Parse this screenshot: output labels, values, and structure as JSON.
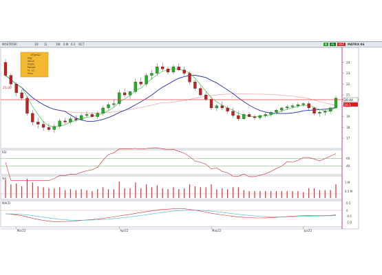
{
  "toolbar": {
    "symbol": "MOSTRTER",
    "range": "1D",
    "interval": "1L",
    "freq": "1W",
    "style": "0.M",
    "src": "0.2",
    "status": "OCT",
    "tag_a": "N",
    "tag_b": "AL",
    "tag_c": "OST",
    "right_label": "MATRIX K6",
    "colors": {
      "tag_a": "#1aa11a",
      "tag_b": "#1a7a1a",
      "tag_c": "#d42020"
    }
  },
  "tooltip": {
    "lines": [
      "17Jun22",
      "Avg:",
      "Value:",
      "Chg%:",
      "Range:",
      "Hi, Lo:",
      "Prev:"
    ]
  },
  "price_badges": {
    "upper": "20.44",
    "lower": "20.1"
  },
  "left_price_label": "21.00",
  "chart_data": {
    "type": "candlestick",
    "panels": [
      {
        "name": "price",
        "ylim": [
          16.5,
          25
        ],
        "yticks": [
          17,
          18,
          19,
          20,
          21,
          22,
          23,
          24
        ],
        "candles": [
          [
            24.0,
            24.3,
            22.6,
            22.8
          ],
          [
            22.8,
            23.0,
            21.8,
            22.0
          ],
          [
            22.0,
            22.2,
            20.9,
            21.2
          ],
          [
            21.2,
            21.5,
            20.5,
            20.7
          ],
          [
            20.7,
            20.9,
            19.1,
            19.3
          ],
          [
            19.3,
            19.6,
            18.2,
            18.5
          ],
          [
            18.5,
            18.9,
            17.9,
            18.3
          ],
          [
            18.3,
            18.6,
            17.7,
            18.0
          ],
          [
            18.0,
            18.4,
            17.6,
            17.8
          ],
          [
            17.8,
            18.3,
            17.5,
            18.1
          ],
          [
            18.1,
            18.8,
            17.9,
            18.6
          ],
          [
            18.6,
            18.9,
            18.3,
            18.5
          ],
          [
            18.5,
            19.0,
            18.3,
            18.8
          ],
          [
            18.8,
            19.1,
            18.5,
            18.7
          ],
          [
            18.7,
            19.3,
            18.6,
            19.1
          ],
          [
            19.1,
            19.5,
            18.9,
            19.2
          ],
          [
            19.2,
            19.4,
            18.9,
            19.0
          ],
          [
            19.0,
            19.5,
            18.8,
            19.3
          ],
          [
            19.3,
            20.0,
            19.1,
            19.8
          ],
          [
            19.8,
            20.3,
            19.6,
            20.1
          ],
          [
            20.1,
            20.6,
            19.9,
            20.2
          ],
          [
            20.2,
            21.5,
            20.0,
            21.2
          ],
          [
            21.2,
            21.6,
            20.8,
            21.0
          ],
          [
            21.0,
            21.4,
            20.6,
            21.3
          ],
          [
            21.3,
            22.5,
            21.1,
            22.2
          ],
          [
            22.2,
            22.6,
            21.8,
            22.0
          ],
          [
            22.0,
            23.0,
            21.8,
            22.8
          ],
          [
            22.8,
            23.3,
            22.4,
            23.0
          ],
          [
            23.0,
            23.9,
            22.8,
            23.6
          ],
          [
            23.6,
            24.0,
            23.2,
            23.4
          ],
          [
            23.4,
            23.6,
            22.9,
            23.1
          ],
          [
            23.1,
            23.8,
            22.9,
            23.6
          ],
          [
            23.6,
            23.9,
            23.2,
            23.3
          ],
          [
            23.3,
            23.6,
            22.8,
            23.0
          ],
          [
            23.0,
            23.2,
            22.0,
            22.2
          ],
          [
            22.2,
            22.4,
            21.4,
            21.6
          ],
          [
            21.6,
            21.8,
            20.9,
            21.0
          ],
          [
            21.0,
            21.3,
            20.4,
            20.6
          ],
          [
            20.6,
            20.8,
            19.6,
            19.8
          ],
          [
            19.8,
            20.2,
            19.5,
            20.0
          ],
          [
            20.0,
            20.4,
            19.6,
            19.8
          ],
          [
            19.8,
            20.0,
            19.3,
            19.5
          ],
          [
            19.5,
            19.8,
            18.9,
            19.1
          ],
          [
            19.1,
            19.5,
            18.6,
            18.8
          ],
          [
            18.8,
            19.3,
            18.7,
            19.2
          ],
          [
            19.2,
            19.4,
            18.9,
            19.0
          ],
          [
            19.0,
            19.2,
            18.7,
            18.9
          ],
          [
            18.9,
            19.2,
            18.7,
            19.1
          ],
          [
            19.1,
            19.4,
            18.9,
            19.2
          ],
          [
            19.2,
            19.5,
            19.0,
            19.4
          ],
          [
            19.4,
            19.7,
            19.2,
            19.6
          ],
          [
            19.6,
            19.9,
            19.4,
            19.8
          ],
          [
            19.8,
            20.1,
            19.6,
            19.9
          ],
          [
            19.9,
            20.2,
            19.7,
            20.0
          ],
          [
            20.0,
            20.3,
            19.8,
            20.1
          ],
          [
            20.1,
            20.3,
            19.9,
            20.2
          ],
          [
            20.2,
            20.4,
            19.6,
            19.8
          ],
          [
            19.8,
            19.9,
            19.1,
            19.3
          ],
          [
            19.3,
            19.6,
            19.0,
            19.4
          ],
          [
            19.4,
            19.7,
            19.1,
            19.5
          ],
          [
            19.5,
            19.9,
            19.3,
            19.8
          ],
          [
            19.8,
            20.9,
            19.7,
            20.7
          ]
        ]
      },
      {
        "name": "RSI",
        "ylim": [
          20,
          80
        ],
        "yticks": [
          40,
          60
        ]
      },
      {
        "name": "Vol",
        "yticks": [
          "0.5 M",
          "1 M"
        ]
      },
      {
        "name": "MACD",
        "yticks": [
          "0.5",
          "0",
          "-0.5",
          "-1.0"
        ]
      }
    ],
    "x_tick_labels": [
      "Mar22",
      "Apr22",
      "May22",
      "Jun22"
    ],
    "overlays": [
      "moving average (blue)",
      "moving average (green)",
      "moving average (red)"
    ],
    "grid": false
  }
}
